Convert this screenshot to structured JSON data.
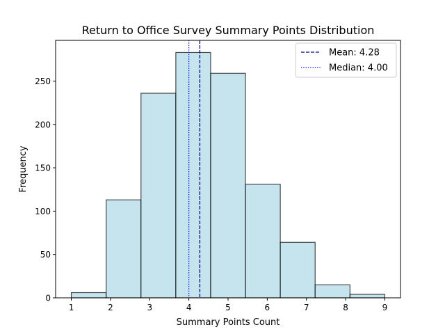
{
  "chart_data": {
    "type": "bar",
    "title": "Return to Office Survey Summary Points Distribution",
    "xlabel": "Summary Points Count",
    "ylabel": "Frequency",
    "bins": [
      {
        "x0": 1.0,
        "x1": 1.889,
        "value": 6
      },
      {
        "x0": 1.889,
        "x1": 2.778,
        "value": 113
      },
      {
        "x0": 2.778,
        "x1": 3.667,
        "value": 236
      },
      {
        "x0": 3.667,
        "x1": 4.556,
        "value": 283
      },
      {
        "x0": 4.556,
        "x1": 5.444,
        "value": 259
      },
      {
        "x0": 5.444,
        "x1": 6.333,
        "value": 131
      },
      {
        "x0": 6.333,
        "x1": 7.222,
        "value": 64
      },
      {
        "x0": 7.222,
        "x1": 8.111,
        "value": 15
      },
      {
        "x0": 8.111,
        "x1": 9.0,
        "value": 4
      }
    ],
    "xticks": [
      1,
      2,
      3,
      4,
      5,
      6,
      7,
      8,
      9
    ],
    "yticks": [
      0,
      50,
      100,
      150,
      200,
      250
    ],
    "xlim": [
      0.6,
      9.4
    ],
    "ylim": [
      0,
      297
    ],
    "mean": {
      "value": 4.28,
      "label": "Mean: 4.28"
    },
    "median": {
      "value": 4.0,
      "label": "Median: 4.00"
    },
    "legend_position": "top-right",
    "grid": false,
    "colors": {
      "bar_fill": "#add8e6",
      "bar_edge": "#000000",
      "mean_line": "#00008b",
      "median_line": "#0000ff"
    }
  }
}
